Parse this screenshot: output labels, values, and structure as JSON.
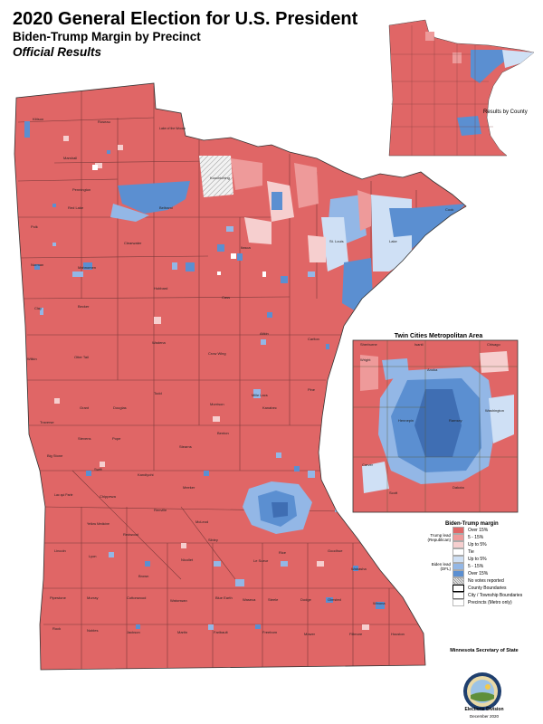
{
  "title": "2020 General Election for U.S. President",
  "subtitle": "Biden-Trump Margin by Precinct",
  "subtitle2": "Official Results",
  "inset": {
    "title": "Twin Cities Metropolitan Area",
    "counties": [
      "Sherburne",
      "Isanti",
      "Chisago",
      "Wright",
      "Anoka",
      "Hennepin",
      "Ramsey",
      "Washington",
      "Carver",
      "Scott",
      "Dakota"
    ]
  },
  "county_inset_label": "Results by County",
  "legend": {
    "title": "Biden-Trump margin",
    "trump_group": "Trump lead (Republican)",
    "biden_group": "Biden lead (DFL)",
    "items": [
      {
        "label": "Over 15%",
        "color": "#e06666"
      },
      {
        "label": "5 - 15%",
        "color": "#ee9a9a"
      },
      {
        "label": "Up to 5%",
        "color": "#f6cfcf"
      },
      {
        "label": "Tie",
        "color": "#ffffff"
      },
      {
        "label": "Up to 5%",
        "color": "#cfe0f5"
      },
      {
        "label": "5 - 15%",
        "color": "#93b7e6"
      },
      {
        "label": "Over 15%",
        "color": "#5b8fd1"
      },
      {
        "label": "No votes reported",
        "color": "#e0e0e0"
      }
    ],
    "boundaries": [
      "County Boundaries",
      "City / Township Boundaries",
      "Precincts (Metro only)"
    ]
  },
  "footer": {
    "agency": "Minnesota Secretary of State",
    "division": "Elections Division",
    "date": "December 2020"
  },
  "counties": [
    "Kittson",
    "Roseau",
    "Lake of the Woods",
    "Marshall",
    "Koochiching",
    "Pennington",
    "Red Lake",
    "Beltrami",
    "Polk",
    "Clearwater",
    "Itasca",
    "St. Louis",
    "Lake",
    "Cook",
    "Norman",
    "Mahnomen",
    "Clay",
    "Becker",
    "Hubbard",
    "Cass",
    "Aitkin",
    "Carlton",
    "Wilkin",
    "Otter Tail",
    "Wadena",
    "Crow Wing",
    "Pine",
    "Grant",
    "Douglas",
    "Todd",
    "Morrison",
    "Mille Lacs",
    "Kanabec",
    "Traverse",
    "Stevens",
    "Pope",
    "Stearns",
    "Benton",
    "Big Stone",
    "Swift",
    "Kandiyohi",
    "Meeker",
    "Lac qui Parle",
    "Chippewa",
    "Renville",
    "McLeod",
    "Yellow Medicine",
    "Redwood",
    "Sibley",
    "Lincoln",
    "Lyon",
    "Nicollet",
    "Le Sueur",
    "Rice",
    "Goodhue",
    "Wabasha",
    "Brown",
    "Pipestone",
    "Murray",
    "Cottonwood",
    "Watonwan",
    "Blue Earth",
    "Waseca",
    "Steele",
    "Dodge",
    "Olmsted",
    "Winona",
    "Rock",
    "Nobles",
    "Jackson",
    "Martin",
    "Faribault",
    "Freeborn",
    "Mower",
    "Fillmore",
    "Houston"
  ]
}
